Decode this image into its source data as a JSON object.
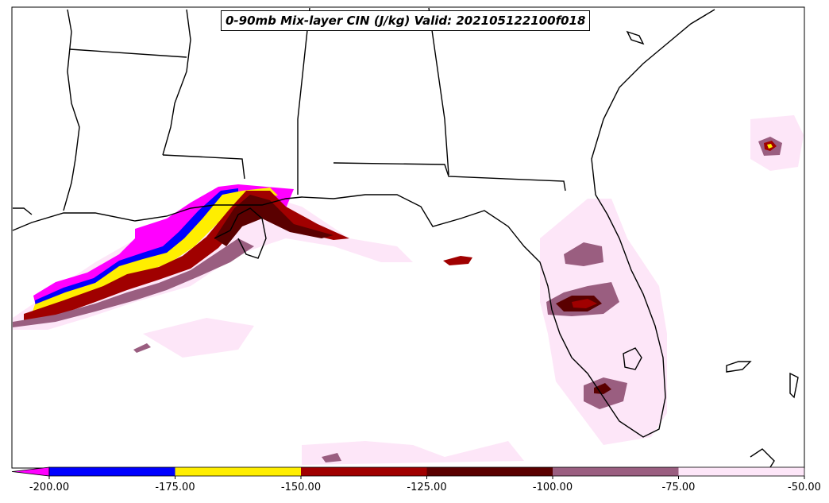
{
  "title": "0-90mb Mix-layer CIN (J/kg) Valid: 202105122100f018",
  "colorbar": {
    "ticks": [
      "-200.00",
      "-175.00",
      "-150.00",
      "-125.00",
      "-100.00",
      "-75.00",
      "-50.00"
    ],
    "bins": [
      {
        "from": -200,
        "to": -175,
        "color": "#0000ff"
      },
      {
        "from": -175,
        "to": -150,
        "color": "#ffee00"
      },
      {
        "from": -150,
        "to": -125,
        "color": "#a00000"
      },
      {
        "from": -125,
        "to": -100,
        "color": "#5a0000"
      },
      {
        "from": -100,
        "to": -75,
        "color": "#9a5e80"
      },
      {
        "from": -75,
        "to": -50,
        "color": "#fde6f8"
      }
    ],
    "extend_min_color": "#ff00ff"
  },
  "colors": {
    "coast": "#000000",
    "land": "#ffffff"
  }
}
